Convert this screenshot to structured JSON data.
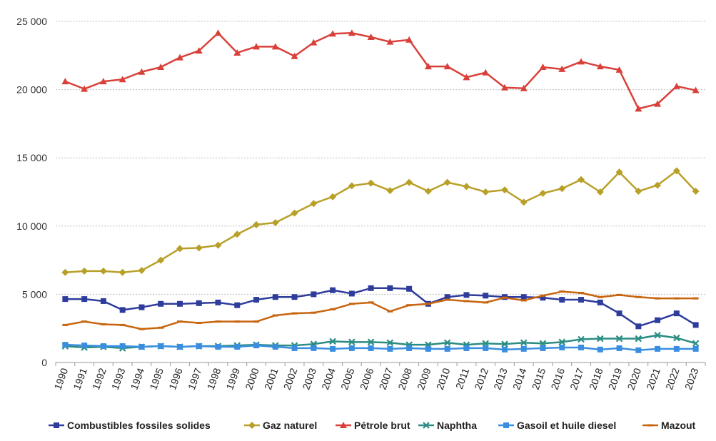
{
  "chart_data": {
    "type": "line",
    "title": "",
    "xlabel": "",
    "ylabel": "",
    "ylim": [
      0,
      25000
    ],
    "yticks": [
      0,
      5000,
      10000,
      15000,
      20000,
      25000
    ],
    "ytick_labels": [
      "0",
      "5 000",
      "10 000",
      "15 000",
      "20 000",
      "25 000"
    ],
    "grid": "horizontal",
    "legend_position": "bottom",
    "x": [
      "1990",
      "1991",
      "1992",
      "1993",
      "1994",
      "1995",
      "1996",
      "1997",
      "1998",
      "1999",
      "2000",
      "2001",
      "2002",
      "2003",
      "2004",
      "2005",
      "2006",
      "2007",
      "2008",
      "2009",
      "2010",
      "2011",
      "2012",
      "2013",
      "2014",
      "2015",
      "2016",
      "2017",
      "2018",
      "2019",
      "2020",
      "2021",
      "2022",
      "2023"
    ],
    "series": [
      {
        "name": "Combustibles fossiles solides",
        "color": "#2e3c9c",
        "marker": "square",
        "values": [
          4650,
          4650,
          4500,
          3850,
          4050,
          4300,
          4300,
          4350,
          4400,
          4200,
          4600,
          4800,
          4800,
          5000,
          5300,
          5050,
          5450,
          5450,
          5400,
          4300,
          4800,
          4950,
          4900,
          4800,
          4800,
          4750,
          4600,
          4600,
          4400,
          3600,
          2650,
          3100,
          3600,
          2750
        ]
      },
      {
        "name": "Gaz naturel",
        "color": "#b8a028",
        "marker": "diamond",
        "values": [
          6600,
          6700,
          6700,
          6600,
          6750,
          7500,
          8350,
          8400,
          8600,
          9400,
          10100,
          10250,
          10950,
          11650,
          12150,
          12950,
          13150,
          12600,
          13200,
          12550,
          13200,
          12900,
          12500,
          12650,
          11750,
          12400,
          12750,
          13400,
          12500,
          13950,
          12550,
          13000,
          14050,
          12550
        ]
      },
      {
        "name": "Pétrole brut",
        "color": "#d9403a",
        "marker": "triangle",
        "values": [
          20600,
          20050,
          20600,
          20750,
          21300,
          21650,
          22350,
          22850,
          24150,
          22700,
          23150,
          23150,
          22450,
          23450,
          24100,
          24150,
          23850,
          23500,
          23650,
          21700,
          21700,
          20900,
          21250,
          20150,
          20100,
          21650,
          21500,
          22050,
          21700,
          21450,
          18600,
          18950,
          20250,
          19950
        ]
      },
      {
        "name": "Naphtha",
        "color": "#2a8c82",
        "marker": "x",
        "values": [
          1200,
          1100,
          1150,
          1050,
          1150,
          1200,
          1150,
          1200,
          1200,
          1250,
          1300,
          1250,
          1250,
          1350,
          1550,
          1500,
          1500,
          1450,
          1300,
          1300,
          1450,
          1300,
          1400,
          1350,
          1450,
          1400,
          1500,
          1700,
          1750,
          1750,
          1750,
          2000,
          1800,
          1400
        ]
      },
      {
        "name": "Gasoil et huile diesel",
        "color": "#3a8ee0",
        "marker": "square",
        "values": [
          1300,
          1250,
          1200,
          1200,
          1150,
          1200,
          1150,
          1200,
          1150,
          1150,
          1250,
          1150,
          1050,
          1050,
          1000,
          1050,
          1050,
          1000,
          1050,
          1000,
          1000,
          1050,
          1050,
          950,
          1000,
          1050,
          1100,
          1100,
          950,
          1050,
          900,
          1000,
          1000,
          1000
        ]
      },
      {
        "name": "Mazout",
        "color": "#c8650f",
        "marker": "dash",
        "values": [
          2750,
          3000,
          2800,
          2750,
          2450,
          2550,
          3000,
          2900,
          3000,
          3000,
          3000,
          3450,
          3600,
          3650,
          3900,
          4300,
          4400,
          3750,
          4200,
          4300,
          4600,
          4500,
          4400,
          4750,
          4550,
          4900,
          5200,
          5100,
          4800,
          4950,
          4800,
          4700,
          4700,
          4700
        ]
      }
    ]
  }
}
